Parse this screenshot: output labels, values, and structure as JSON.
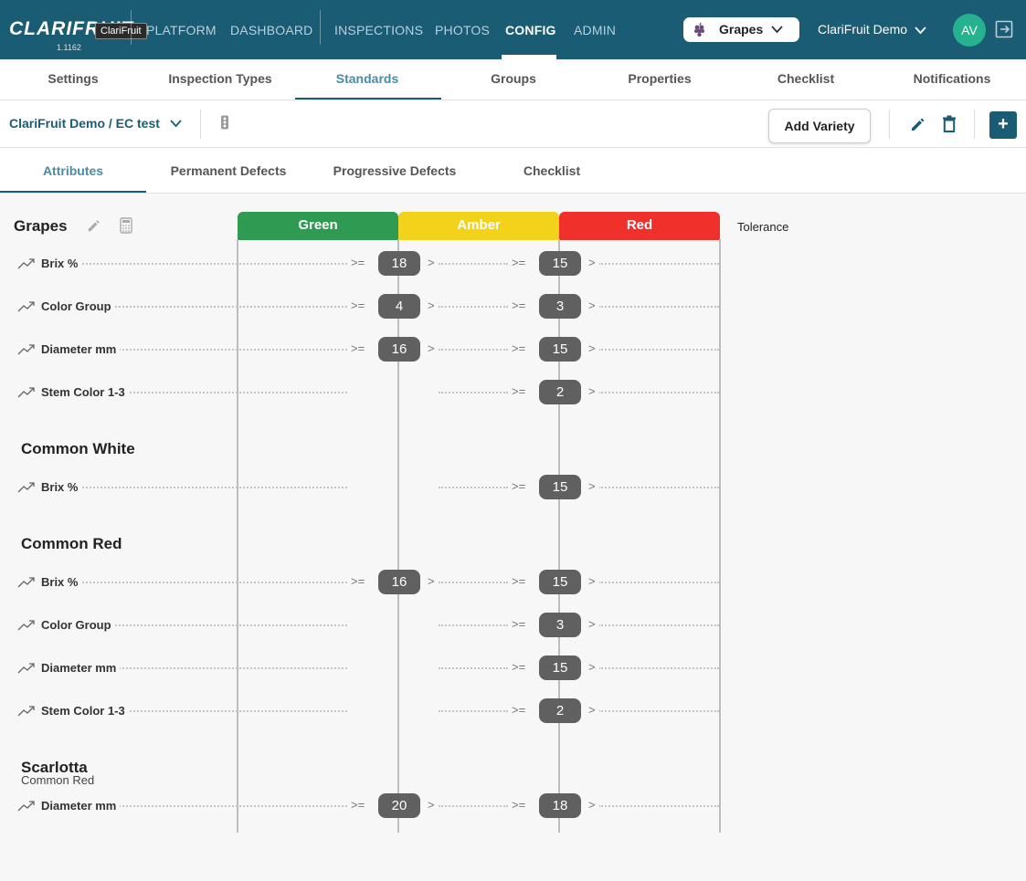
{
  "app": {
    "logo": "CLARIFRUIT",
    "version": "1.1162",
    "tooltip": "ClariFruit"
  },
  "nav": {
    "items": [
      "PLATFORM",
      "DASHBOARD",
      "INSPECTIONS",
      "PHOTOS",
      "CONFIG",
      "ADMIN"
    ],
    "active": "CONFIG"
  },
  "fruit_select": {
    "value": "Grapes",
    "icon": "grape-icon"
  },
  "org_select": {
    "value": "ClariFruit Demo"
  },
  "avatar": {
    "initials": "AV"
  },
  "subtabs": [
    "Settings",
    "Inspection Types",
    "Standards",
    "Groups",
    "Properties",
    "Checklist",
    "Notifications"
  ],
  "subtab_active": "Standards",
  "toolbar": {
    "breadcrumb": "ClariFruit Demo / EC test",
    "add_variety": "Add Variety",
    "plus": "+"
  },
  "innertabs": [
    "Attributes",
    "Permanent Defects",
    "Progressive Defects",
    "Checklist"
  ],
  "innertab_active": "Attributes",
  "columns": {
    "green": {
      "label": "Green",
      "color": "#2e9a52"
    },
    "amber": {
      "label": "Amber",
      "color": "#f2d21b"
    },
    "red": {
      "label": "Red",
      "color": "#f0302b"
    },
    "tolerance": "Tolerance"
  },
  "operators": {
    "gte": ">=",
    "gt": ">"
  },
  "groups": [
    {
      "title": "Grapes",
      "subtitle": "",
      "rows": [
        {
          "name": "Brix %",
          "green": "18",
          "amber": "15"
        },
        {
          "name": "Color Group",
          "green": "4",
          "amber": "3"
        },
        {
          "name": "Diameter mm",
          "green": "16",
          "amber": "15"
        },
        {
          "name": "Stem Color 1-3",
          "green": "",
          "amber": "2"
        }
      ]
    },
    {
      "title": "Common White",
      "subtitle": "",
      "rows": [
        {
          "name": "Brix %",
          "green": "",
          "amber": "15"
        }
      ]
    },
    {
      "title": "Common Red",
      "subtitle": "",
      "rows": [
        {
          "name": "Brix %",
          "green": "16",
          "amber": "15"
        },
        {
          "name": "Color Group",
          "green": "",
          "amber": "3"
        },
        {
          "name": "Diameter mm",
          "green": "",
          "amber": "15"
        },
        {
          "name": "Stem Color 1-3",
          "green": "",
          "amber": "2"
        }
      ]
    },
    {
      "title": "Scarlotta",
      "subtitle": "Common Red",
      "rows": [
        {
          "name": "Diameter mm",
          "green": "20",
          "amber": "18"
        }
      ]
    }
  ]
}
